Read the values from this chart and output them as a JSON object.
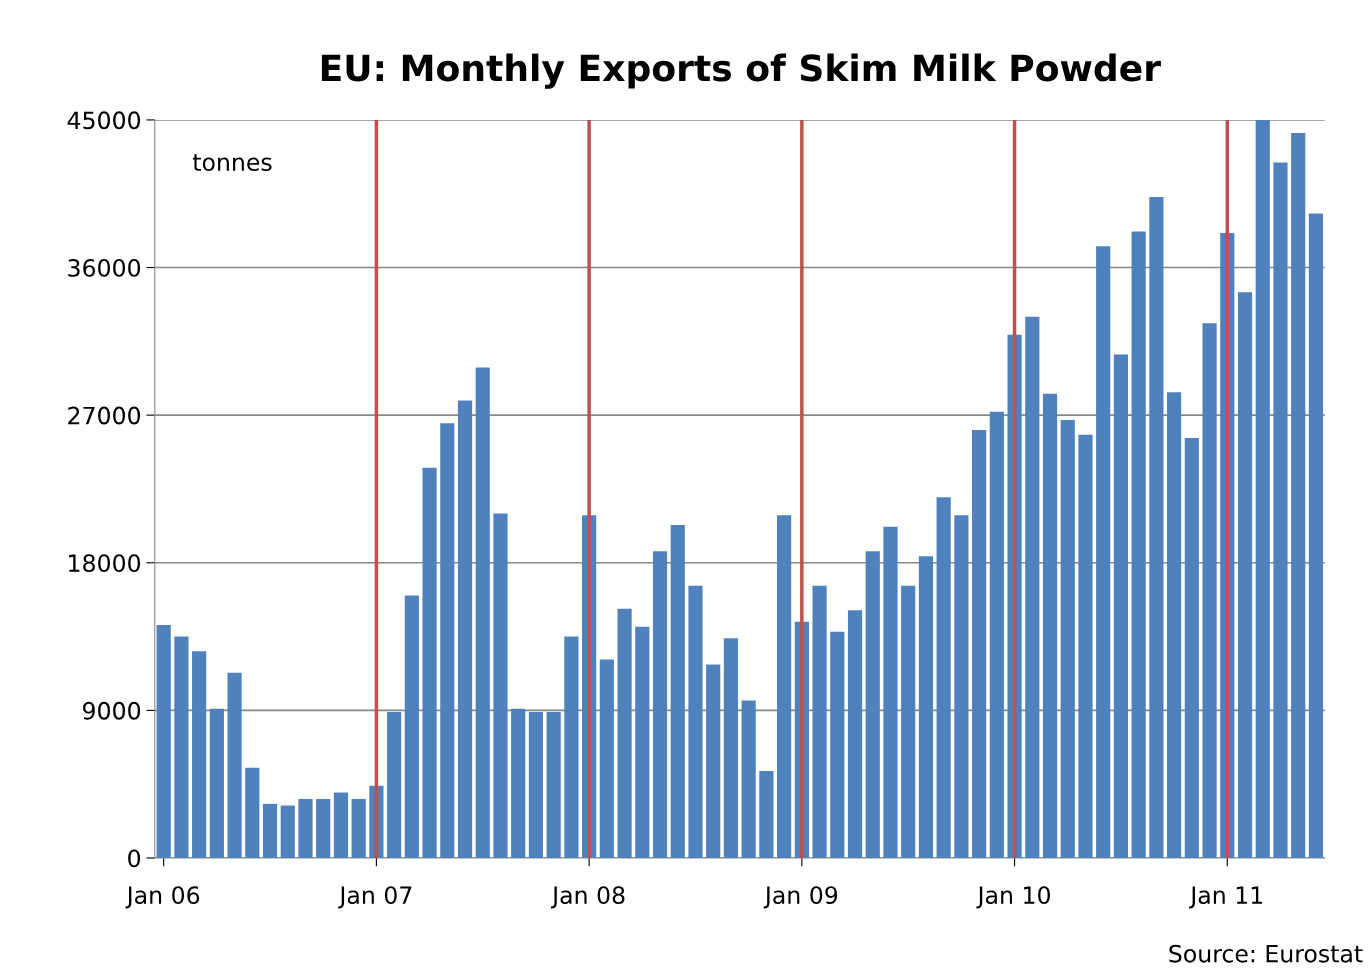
{
  "chart_data": {
    "type": "bar",
    "title": "EU: Monthly Exports of Skim Milk Powder",
    "categories": [
      "Jan 06",
      null,
      null,
      null,
      null,
      null,
      null,
      null,
      null,
      null,
      null,
      null,
      "Jan 07",
      null,
      null,
      null,
      null,
      null,
      null,
      null,
      null,
      null,
      null,
      null,
      "Jan 08",
      null,
      null,
      null,
      null,
      null,
      null,
      null,
      null,
      null,
      null,
      null,
      "Jan 09",
      null,
      null,
      null,
      null,
      null,
      null,
      null,
      null,
      null,
      null,
      null,
      "Jan 10",
      null,
      null,
      null,
      null,
      null,
      null,
      null,
      null,
      null,
      null,
      null,
      "Jan 11",
      null,
      null,
      null,
      null,
      null
    ],
    "values": [
      14200,
      13500,
      12600,
      9100,
      11300,
      5500,
      3300,
      3200,
      3600,
      3600,
      4000,
      3600,
      4400,
      8900,
      16000,
      23800,
      26500,
      27900,
      29900,
      21000,
      9100,
      8900,
      8900,
      13500,
      20900,
      12100,
      15200,
      14100,
      18700,
      20300,
      16600,
      11800,
      13400,
      9600,
      5300,
      20900,
      14400,
      16600,
      13800,
      15100,
      18700,
      20200,
      16600,
      18400,
      22000,
      20900,
      26100,
      27200,
      31900,
      33000,
      28300,
      26700,
      25800,
      37300,
      30700,
      38200,
      40300,
      28400,
      25600,
      32600,
      38100,
      34500,
      45000,
      42400,
      44200,
      39300
    ],
    "color": "#4f81bd",
    "ylim": [
      0,
      45000
    ],
    "yticks": [
      0,
      9000,
      18000,
      27000,
      36000,
      45000
    ],
    "grid": "y",
    "ref_lines": [
      {
        "axis": "x",
        "value": "Jan 07",
        "color": "#c0504d"
      },
      {
        "axis": "x",
        "value": "Jan 08",
        "color": "#c0504d"
      },
      {
        "axis": "x",
        "value": "Jan 09",
        "color": "#c0504d"
      },
      {
        "axis": "x",
        "value": "Jan 10",
        "color": "#c0504d"
      },
      {
        "axis": "x",
        "value": "Jan 11",
        "color": "#c0504d"
      }
    ],
    "annotations": [
      "tonnes",
      "Source: Eurostat"
    ]
  }
}
